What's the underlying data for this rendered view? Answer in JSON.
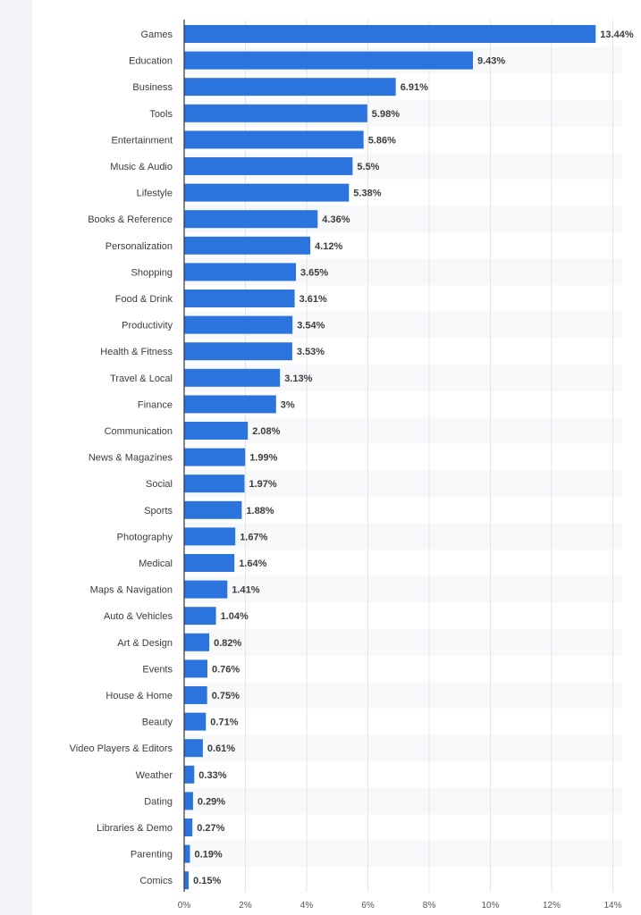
{
  "colors": {
    "bar": "#2b74de",
    "grid": "#e2e4e8",
    "band": "#f7f8fa",
    "axis": "#333333"
  },
  "chart_data": {
    "type": "bar",
    "orientation": "horizontal",
    "title": "",
    "xlabel": "",
    "ylabel": "",
    "xlim": [
      0,
      14
    ],
    "x_ticks": [
      "0%",
      "2%",
      "4%",
      "6%",
      "8%",
      "10%",
      "12%",
      "14%"
    ],
    "grid": true,
    "value_suffix": "%",
    "categories": [
      "Games",
      "Education",
      "Business",
      "Tools",
      "Entertainment",
      "Music & Audio",
      "Lifestyle",
      "Books & Reference",
      "Personalization",
      "Shopping",
      "Food & Drink",
      "Productivity",
      "Health & Fitness",
      "Travel & Local",
      "Finance",
      "Communication",
      "News & Magazines",
      "Social",
      "Sports",
      "Photography",
      "Medical",
      "Maps & Navigation",
      "Auto & Vehicles",
      "Art & Design",
      "Events",
      "House & Home",
      "Beauty",
      "Video Players & Editors",
      "Weather",
      "Dating",
      "Libraries & Demo",
      "Parenting",
      "Comics"
    ],
    "values": [
      13.44,
      9.43,
      6.91,
      5.98,
      5.86,
      5.5,
      5.38,
      4.36,
      4.12,
      3.65,
      3.61,
      3.54,
      3.53,
      3.13,
      3,
      2.08,
      1.99,
      1.97,
      1.88,
      1.67,
      1.64,
      1.41,
      1.04,
      0.82,
      0.76,
      0.75,
      0.71,
      0.61,
      0.33,
      0.29,
      0.27,
      0.19,
      0.15
    ]
  }
}
